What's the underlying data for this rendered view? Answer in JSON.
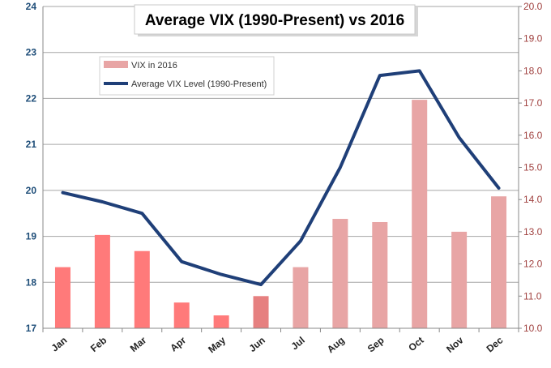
{
  "chart_data": {
    "type": "bar+line",
    "title": "Average VIX (1990-Present) vs 2016",
    "categories": [
      "Jan",
      "Feb",
      "Mar",
      "Apr",
      "May",
      "Jun",
      "Jul",
      "Aug",
      "Sep",
      "Oct",
      "Nov",
      "Dec"
    ],
    "left_axis": {
      "range": [
        17,
        24
      ],
      "ticks": [
        "17",
        "18",
        "19",
        "20",
        "21",
        "22",
        "23",
        "24"
      ]
    },
    "right_axis": {
      "range": [
        10,
        20
      ],
      "ticks": [
        "10.0",
        "11.0",
        "12.0",
        "13.0",
        "14.0",
        "15.0",
        "16.0",
        "17.0",
        "18.0",
        "19.0",
        "20.0"
      ]
    },
    "grid": true,
    "legend_position": "top-left",
    "series": [
      {
        "name": "VIX in 2016",
        "kind": "bar",
        "axis": "right",
        "values": [
          11.9,
          12.9,
          12.4,
          10.8,
          10.4,
          11.0,
          11.9,
          13.4,
          13.3,
          17.1,
          13.0,
          14.1
        ],
        "colors": [
          "#ff7a7a",
          "#ff7a7a",
          "#ff7a7a",
          "#ff7a7a",
          "#ff7a7a",
          "#e68080",
          "#e8a5a5",
          "#e8a5a5",
          "#e8a5a5",
          "#e8a5a5",
          "#e8a5a5",
          "#e8a5a5"
        ]
      },
      {
        "name": "Average VIX Level (1990-Present)",
        "kind": "line",
        "axis": "left",
        "color": "#1f3f78",
        "values": [
          19.95,
          19.75,
          19.5,
          18.45,
          18.17,
          17.95,
          18.9,
          20.5,
          22.5,
          22.6,
          21.15,
          20.05
        ]
      }
    ]
  }
}
